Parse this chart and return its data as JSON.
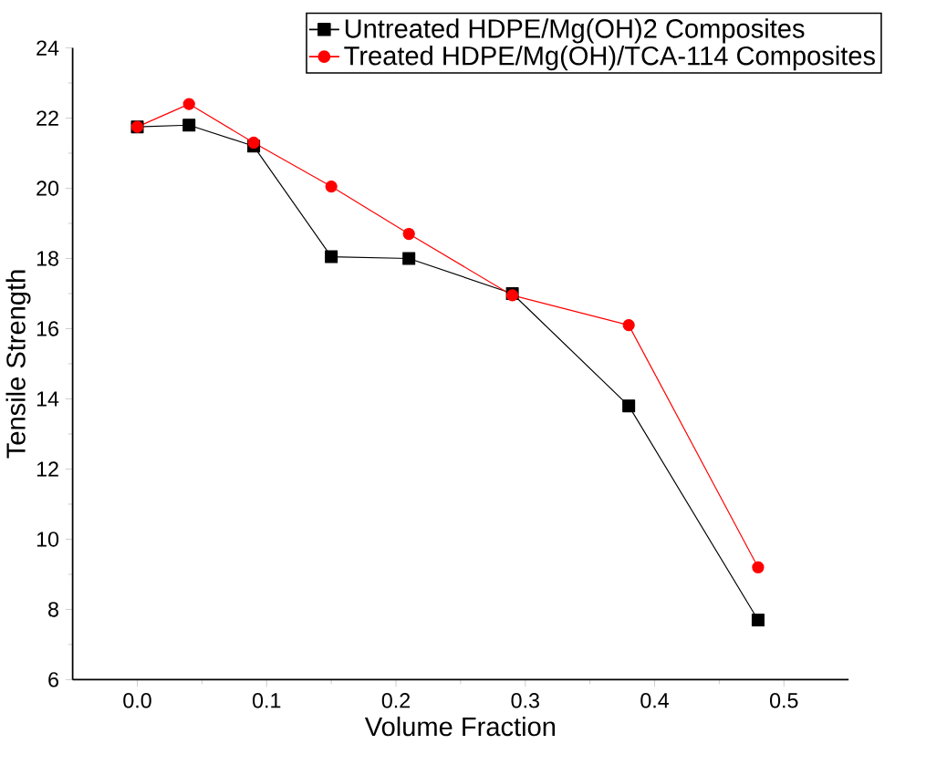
{
  "chart_data": {
    "type": "line",
    "xlabel": "Volume Fraction",
    "ylabel": "Tensile Strength",
    "x": [
      0,
      0.04,
      0.09,
      0.15,
      0.21,
      0.29,
      0.38,
      0.48
    ],
    "series": [
      {
        "name": "Untreated HDPE/Mg(OH)2 Composites",
        "color": "#000000",
        "marker": "square",
        "values": [
          21.75,
          21.8,
          21.2,
          18.05,
          18.0,
          17.0,
          13.8,
          7.7
        ]
      },
      {
        "name": "Treated   HDPE/Mg(OH)/TCA-114 Composites",
        "color": "#ff0000",
        "marker": "circle",
        "values": [
          21.75,
          22.4,
          21.3,
          20.05,
          18.7,
          16.95,
          16.1,
          9.2
        ]
      }
    ],
    "xlim": [
      -0.05,
      0.55
    ],
    "xticks": [
      {
        "value": 0,
        "label": "0.0"
      },
      0.1,
      0.2,
      0.3,
      0.4,
      0.5
    ],
    "ylim": [
      6,
      24
    ],
    "yticks": [
      6,
      8,
      10,
      12,
      14,
      16,
      18,
      20,
      22,
      24
    ],
    "grid": false,
    "legend": "top right",
    "line_style": "solid"
  }
}
